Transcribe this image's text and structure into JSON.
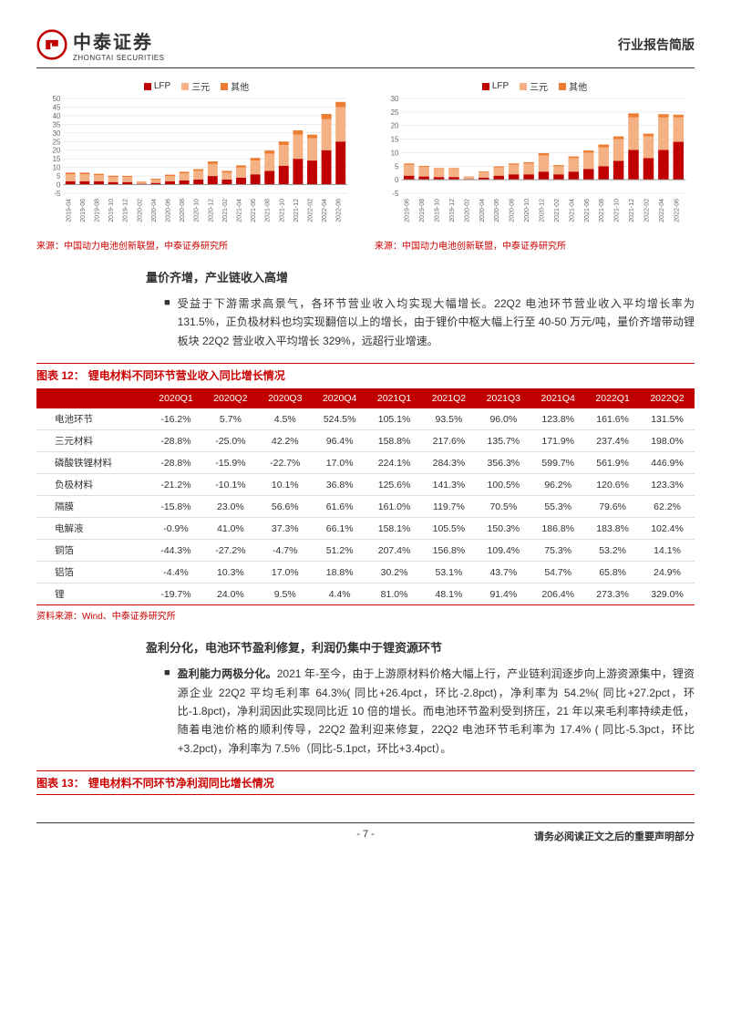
{
  "header": {
    "companyCn": "中泰证券",
    "companyEn": "ZHONGTAI SECURITIES",
    "docType": "行业报告简版"
  },
  "chart1": {
    "legend": [
      {
        "label": "LFP",
        "color": "#c00000"
      },
      {
        "label": "三元",
        "color": "#f4b183"
      },
      {
        "label": "其他",
        "color": "#ed7d31"
      }
    ],
    "ylim": [
      -5,
      50
    ],
    "yticks": [
      -5,
      0,
      5,
      10,
      15,
      20,
      25,
      30,
      35,
      40,
      45,
      50
    ],
    "grid_color": "#d9d9d9",
    "categories": [
      "2019-04",
      "2019-06",
      "2019-08",
      "2019-10",
      "2019-12",
      "2020-02",
      "2020-04",
      "2020-06",
      "2020-08",
      "2020-10",
      "2020-12",
      "2021-02",
      "2021-04",
      "2021-06",
      "2021-08",
      "2021-10",
      "2021-12",
      "2022-02",
      "2022-04",
      "2022-06"
    ],
    "series": {
      "lfp": [
        2,
        2,
        2,
        1.5,
        1.5,
        0.5,
        1,
        2,
        2.5,
        3,
        5,
        3,
        4,
        6,
        8,
        11,
        15,
        14,
        20,
        25
      ],
      "sy": [
        4,
        4,
        3.5,
        3,
        3,
        1,
        2,
        3,
        4,
        5,
        7,
        4,
        6,
        8,
        10,
        12,
        14,
        13,
        18,
        20
      ],
      "other": [
        1,
        1,
        0.8,
        0.7,
        0.6,
        0.3,
        0.5,
        0.8,
        1,
        1,
        1.5,
        1,
        1.2,
        1.5,
        1.8,
        2,
        2.5,
        2,
        3,
        3
      ]
    },
    "source": "来源：中国动力电池创新联盟，中泰证券研究所"
  },
  "chart2": {
    "legend": [
      {
        "label": "LFP",
        "color": "#c00000"
      },
      {
        "label": "三元",
        "color": "#f4b183"
      },
      {
        "label": "其他",
        "color": "#ed7d31"
      }
    ],
    "ylim": [
      -5,
      30
    ],
    "yticks": [
      -5,
      0,
      5,
      10,
      15,
      20,
      25,
      30
    ],
    "grid_color": "#d9d9d9",
    "categories": [
      "2019-06",
      "2019-08",
      "2019-10",
      "2019-12",
      "2020-02",
      "2020-04",
      "2020-06",
      "2020-08",
      "2020-10",
      "2020-12",
      "2021-02",
      "2021-04",
      "2021-06",
      "2021-08",
      "2021-10",
      "2021-12",
      "2022-02",
      "2022-04",
      "2022-06"
    ],
    "series": {
      "lfp": [
        1.5,
        1.2,
        1,
        1,
        0.3,
        0.8,
        1.5,
        2,
        2,
        3,
        2,
        3,
        4,
        5,
        7,
        11,
        8,
        11,
        14
      ],
      "sy": [
        4,
        3.5,
        3,
        3,
        0.8,
        2,
        3,
        3.5,
        4,
        6,
        3,
        5,
        6,
        7,
        8,
        12,
        8,
        12,
        9
      ],
      "other": [
        0.5,
        0.4,
        0.3,
        0.3,
        0.1,
        0.3,
        0.4,
        0.5,
        0.5,
        0.8,
        0.4,
        0.6,
        0.8,
        1,
        1,
        1.5,
        1,
        1.2,
        1
      ]
    },
    "source": "来源：中国动力电池创新联盟，中泰证券研究所"
  },
  "section1": {
    "heading": "量价齐增，产业链收入高增",
    "bullet": "受益于下游需求高景气，各环节营业收入均实现大幅增长。22Q2 电池环节营业收入平均增长率为 131.5%，正负极材料也均实现翻倍以上的增长，由于锂价中枢大幅上行至 40-50 万元/吨，量价齐增带动锂板块 22Q2 营业收入平均增长 329%，远超行业增速。"
  },
  "table12": {
    "titlePrefix": "图表 12：",
    "title": "锂电材料不同环节营业收入同比增长情况",
    "columns": [
      "",
      "2020Q1",
      "2020Q2",
      "2020Q3",
      "2020Q4",
      "2021Q1",
      "2021Q2",
      "2021Q3",
      "2021Q4",
      "2022Q1",
      "2022Q2"
    ],
    "rows": [
      [
        "电池环节",
        "-16.2%",
        "5.7%",
        "4.5%",
        "524.5%",
        "105.1%",
        "93.5%",
        "96.0%",
        "123.8%",
        "161.6%",
        "131.5%"
      ],
      [
        "三元材料",
        "-28.8%",
        "-25.0%",
        "42.2%",
        "96.4%",
        "158.8%",
        "217.6%",
        "135.7%",
        "171.9%",
        "237.4%",
        "198.0%"
      ],
      [
        "磷酸铁锂材料",
        "-28.8%",
        "-15.9%",
        "-22.7%",
        "17.0%",
        "224.1%",
        "284.3%",
        "356.3%",
        "599.7%",
        "561.9%",
        "446.9%"
      ],
      [
        "负极材料",
        "-21.2%",
        "-10.1%",
        "10.1%",
        "36.8%",
        "125.6%",
        "141.3%",
        "100.5%",
        "96.2%",
        "120.6%",
        "123.3%"
      ],
      [
        "隔膜",
        "-15.8%",
        "23.0%",
        "56.6%",
        "61.6%",
        "161.0%",
        "119.7%",
        "70.5%",
        "55.3%",
        "79.6%",
        "62.2%"
      ],
      [
        "电解液",
        "-0.9%",
        "41.0%",
        "37.3%",
        "66.1%",
        "158.1%",
        "105.5%",
        "150.3%",
        "186.8%",
        "183.8%",
        "102.4%"
      ],
      [
        "铜箔",
        "-44.3%",
        "-27.2%",
        "-4.7%",
        "51.2%",
        "207.4%",
        "156.8%",
        "109.4%",
        "75.3%",
        "53.2%",
        "14.1%"
      ],
      [
        "铝箔",
        "-4.4%",
        "10.3%",
        "17.0%",
        "18.8%",
        "30.2%",
        "53.1%",
        "43.7%",
        "54.7%",
        "65.8%",
        "24.9%"
      ],
      [
        "锂",
        "-19.7%",
        "24.0%",
        "9.5%",
        "4.4%",
        "81.0%",
        "48.1%",
        "91.4%",
        "206.4%",
        "273.3%",
        "329.0%"
      ]
    ],
    "source": "资料来源：Wind、中泰证券研究所"
  },
  "section2": {
    "heading": "盈利分化，电池环节盈利修复，利润仍集中于锂资源环节",
    "bulletBold": "盈利能力两极分化。",
    "bullet": "2021 年-至今，由于上游原材料价格大幅上行，产业链利润逐步向上游资源集中，锂资源企业 22Q2 平均毛利率 64.3%( 同比+26.4pct，环比-2.8pct)，净利率为 54.2%( 同比+27.2pct，环比-1.8pct)，净利润因此实现同比近 10 倍的增长。而电池环节盈利受到挤压，21 年以来毛利率持续走低，随着电池价格的顺利传导，22Q2 盈利迎来修复，22Q2 电池环节毛利率为 17.4% ( 同比-5.3pct，环比+3.2pct)，净利率为 7.5%（同比-5.1pct，环比+3.4pct）。"
  },
  "table13": {
    "titlePrefix": "图表 13：",
    "title": "锂电材料不同环节净利润同比增长情况"
  },
  "footer": {
    "page": "- 7 -",
    "note": "请务必阅读正文之后的重要声明部分"
  }
}
